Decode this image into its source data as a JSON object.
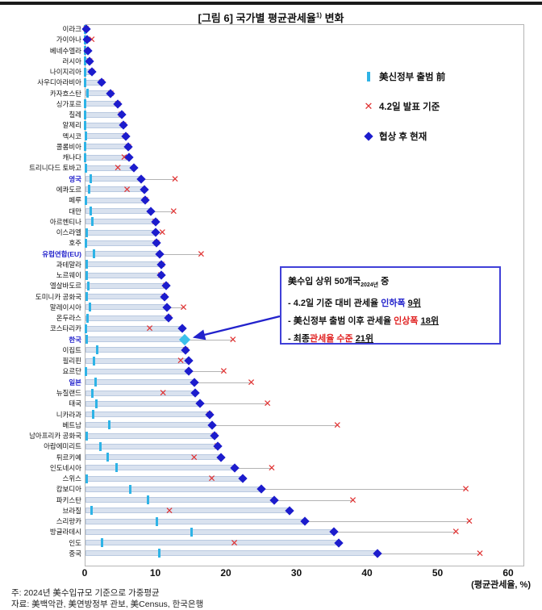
{
  "page": {
    "title": {
      "prefix": "[그림 6] 국가별 평균관세율",
      "sup": "1)",
      "suffix": " 변화"
    },
    "axis_label": "(평균관세율, %)",
    "notes": [
      "주: 2024년 美수입규모 기준으로 가중평균",
      "자료: 美백악관, 美연방정부 관보, 美Census, 한국은행"
    ]
  },
  "legend": [
    {
      "marker": "tick",
      "label": "美신정부 출범 前"
    },
    {
      "marker": "x",
      "label": "4.2일 발표 기준"
    },
    {
      "marker": "diamond",
      "label": "협상 후 현재"
    }
  ],
  "annotation": {
    "title_segments": [
      {
        "text": "美수입 상위 50개국",
        "style": "plain"
      },
      {
        "text": "2024년",
        "style": "sub"
      },
      {
        "text": " 중",
        "style": "plain"
      }
    ],
    "lines": [
      [
        {
          "text": "- 4.2일 기준 대비 관세율 ",
          "style": "plain"
        },
        {
          "text": "인하폭",
          "style": "blue"
        },
        {
          "text": " ",
          "style": "plain"
        },
        {
          "text": "9위",
          "style": "underline"
        }
      ],
      [
        {
          "text": "- 美신정부 출범 이후 관세율 ",
          "style": "plain"
        },
        {
          "text": "인상폭",
          "style": "red"
        },
        {
          "text": " ",
          "style": "plain"
        },
        {
          "text": "18위",
          "style": "underline"
        }
      ],
      [
        {
          "text": "- 최종",
          "style": "plain"
        },
        {
          "text": "관세율 수준",
          "style": "red"
        },
        {
          "text": " ",
          "style": "plain"
        },
        {
          "text": "21위",
          "style": "underline"
        }
      ]
    ]
  },
  "colors": {
    "pre_tick": "#2eb3e6",
    "apr2_x": "#e03030",
    "current_diamond": "#1c1ccd",
    "highlight_diamond": "#3cc1ea",
    "bar_fill": "#d9e2ef",
    "blue_label": "#2222cc"
  },
  "chart_data": {
    "type": "scatter",
    "title": "[그림 6] 국가별 평균관세율 변화",
    "xlabel": "(평균관세율, %)",
    "xlim": [
      0,
      60
    ],
    "xticks": [
      0,
      10,
      20,
      30,
      40,
      50,
      60
    ],
    "legend_position": "upper right",
    "series_names": [
      "美신정부 출범 前",
      "4.2일 발표 기준",
      "협상 후 현재"
    ],
    "highlight": "한국",
    "blue_labels": [
      "영국",
      "유럽연합(EU)",
      "한국",
      "일본"
    ],
    "rows": [
      {
        "name": "이라크",
        "pre": 0.0,
        "apr": 0.2,
        "cur": 0.2
      },
      {
        "name": "가이아나",
        "pre": 0.0,
        "apr": 1.0,
        "cur": 0.3
      },
      {
        "name": "베네수엘라",
        "pre": 0.0,
        "apr": 0.4,
        "cur": 0.4
      },
      {
        "name": "러시아",
        "pre": 0.0,
        "apr": 0.7,
        "cur": 0.7
      },
      {
        "name": "나이지리아",
        "pre": 0.1,
        "apr": 1.0,
        "cur": 1.0
      },
      {
        "name": "사우디아라비아",
        "pre": 0.1,
        "apr": 2.4,
        "cur": 2.4
      },
      {
        "name": "카자흐스탄",
        "pre": 0.4,
        "apr": 3.7,
        "cur": 3.7
      },
      {
        "name": "싱가포르",
        "pre": 0.1,
        "apr": 4.7,
        "cur": 4.7
      },
      {
        "name": "칠레",
        "pre": 0.1,
        "apr": 5.2,
        "cur": 5.2
      },
      {
        "name": "알제리",
        "pre": 0.1,
        "apr": 5.5,
        "cur": 5.5
      },
      {
        "name": "멕시코",
        "pre": 0.2,
        "apr": 5.8,
        "cur": 5.8
      },
      {
        "name": "콜롬비아",
        "pre": 0.1,
        "apr": 6.2,
        "cur": 6.2
      },
      {
        "name": "캐나다",
        "pre": 0.1,
        "apr": 5.6,
        "cur": 6.3
      },
      {
        "name": "트리니다드 토바고",
        "pre": 0.2,
        "apr": 4.7,
        "cur": 7.0
      },
      {
        "name": "영국",
        "pre": 0.9,
        "apr": 12.8,
        "cur": 8.0
      },
      {
        "name": "에콰도르",
        "pre": 0.6,
        "apr": 6.0,
        "cur": 8.5
      },
      {
        "name": "페루",
        "pre": 0.2,
        "apr": 8.6,
        "cur": 8.6
      },
      {
        "name": "대만",
        "pre": 0.9,
        "apr": 12.6,
        "cur": 9.4
      },
      {
        "name": "아르헨티나",
        "pre": 1.1,
        "apr": 10.0,
        "cur": 10.0
      },
      {
        "name": "이스라엘",
        "pre": 0.3,
        "apr": 11.0,
        "cur": 10.0
      },
      {
        "name": "호주",
        "pre": 0.2,
        "apr": 10.2,
        "cur": 10.2
      },
      {
        "name": "유럽연합(EU)",
        "pre": 1.3,
        "apr": 16.5,
        "cur": 10.6
      },
      {
        "name": "과테말라",
        "pre": 0.3,
        "apr": 10.9,
        "cur": 10.9
      },
      {
        "name": "노르웨이",
        "pre": 0.3,
        "apr": 10.8,
        "cur": 10.8
      },
      {
        "name": "엘살바도르",
        "pre": 0.5,
        "apr": 11.5,
        "cur": 11.5
      },
      {
        "name": "도미니카 공화국",
        "pre": 0.3,
        "apr": 11.3,
        "cur": 11.3
      },
      {
        "name": "말레이시아",
        "pre": 0.7,
        "apr": 14.0,
        "cur": 11.6
      },
      {
        "name": "온두라스",
        "pre": 0.4,
        "apr": 11.9,
        "cur": 11.9
      },
      {
        "name": "코스타리카",
        "pre": 0.2,
        "apr": 9.2,
        "cur": 13.8
      },
      {
        "name": "한국",
        "pre": 0.3,
        "apr": 21.0,
        "cur": 14.2
      },
      {
        "name": "이집트",
        "pre": 1.8,
        "apr": 14.3,
        "cur": 14.3
      },
      {
        "name": "필리핀",
        "pre": 1.3,
        "apr": 13.6,
        "cur": 14.7
      },
      {
        "name": "요르단",
        "pre": 0.2,
        "apr": 19.7,
        "cur": 14.7
      },
      {
        "name": "일본",
        "pre": 1.5,
        "apr": 23.6,
        "cur": 15.5
      },
      {
        "name": "뉴질랜드",
        "pre": 1.1,
        "apr": 11.1,
        "cur": 15.7
      },
      {
        "name": "태국",
        "pre": 1.7,
        "apr": 25.9,
        "cur": 16.3
      },
      {
        "name": "니카라과",
        "pre": 1.2,
        "apr": 17.7,
        "cur": 17.7
      },
      {
        "name": "베트남",
        "pre": 3.5,
        "apr": 35.8,
        "cur": 18.0
      },
      {
        "name": "남아프리카 공화국",
        "pre": 0.3,
        "apr": 18.4,
        "cur": 18.4
      },
      {
        "name": "아랍에미리트",
        "pre": 2.2,
        "apr": 18.8,
        "cur": 18.8
      },
      {
        "name": "튀르키예",
        "pre": 3.2,
        "apr": 15.5,
        "cur": 19.3
      },
      {
        "name": "인도네시아",
        "pre": 4.5,
        "apr": 26.5,
        "cur": 21.2
      },
      {
        "name": "스위스",
        "pre": 0.3,
        "apr": 18.0,
        "cur": 22.4
      },
      {
        "name": "캄보디아",
        "pre": 6.4,
        "apr": 54.0,
        "cur": 25.0
      },
      {
        "name": "파키스탄",
        "pre": 9.0,
        "apr": 38.0,
        "cur": 26.8
      },
      {
        "name": "브라질",
        "pre": 1.0,
        "apr": 12.0,
        "cur": 29.0
      },
      {
        "name": "스리랑카",
        "pre": 10.2,
        "apr": 54.5,
        "cur": 31.2
      },
      {
        "name": "방글라데시",
        "pre": 15.1,
        "apr": 52.6,
        "cur": 35.3
      },
      {
        "name": "인도",
        "pre": 2.4,
        "apr": 21.2,
        "cur": 36.0
      },
      {
        "name": "중국",
        "pre": 10.6,
        "apr": 56.0,
        "cur": 41.5
      }
    ]
  }
}
